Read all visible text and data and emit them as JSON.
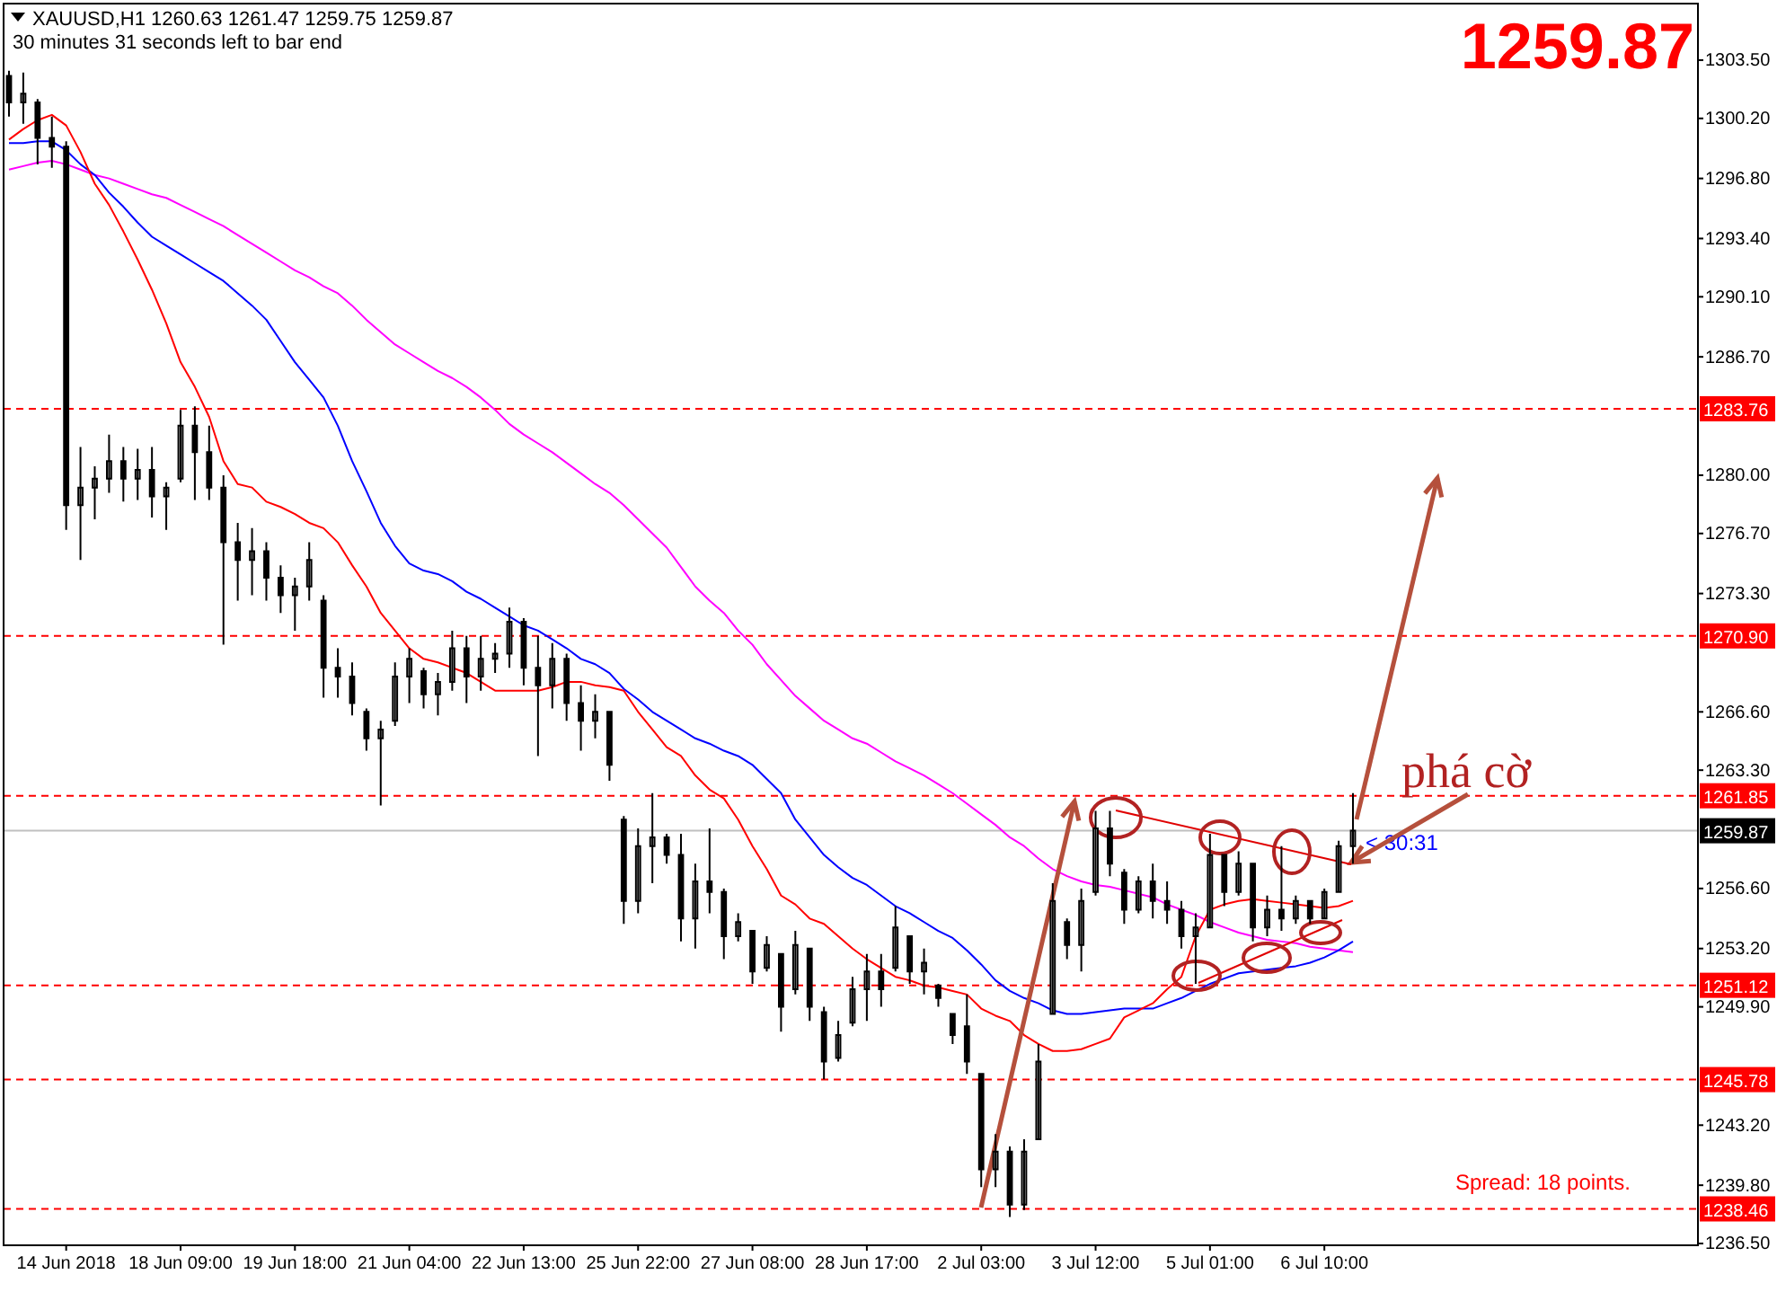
{
  "chart_data": {
    "type": "candlestick",
    "title": "XAUUSD,H1  1260.63 1261.47 1259.75 1259.87",
    "subtitle": "30 minutes 31 seconds left to bar end",
    "annotations": [
      "1259.87",
      "phá cờ",
      "< 30:31",
      "Spread: 18 points."
    ],
    "color": "#000000",
    "categories": [
      null,
      null,
      null,
      null,
      "14 Jun 2018",
      null,
      null,
      null,
      null,
      null,
      null,
      null,
      "18 Jun 09:00",
      null,
      null,
      null,
      null,
      null,
      null,
      null,
      "19 Jun 18:00",
      null,
      null,
      null,
      null,
      null,
      null,
      null,
      "21 Jun 04:00",
      null,
      null,
      null,
      null,
      null,
      null,
      null,
      "22 Jun 13:00",
      null,
      null,
      null,
      null,
      null,
      null,
      null,
      "25 Jun 22:00",
      null,
      null,
      null,
      null,
      null,
      null,
      null,
      "27 Jun 08:00",
      null,
      null,
      null,
      null,
      null,
      null,
      null,
      "28 Jun 17:00",
      null,
      null,
      null,
      null,
      null,
      null,
      null,
      "2 Jul 03:00",
      null,
      null,
      null,
      null,
      null,
      null,
      null,
      "3 Jul 12:00",
      null,
      null,
      null,
      null,
      null,
      null,
      null,
      "5 Jul 01:00",
      null,
      null,
      null,
      null,
      null,
      null,
      null,
      "6 Jul 10:00",
      null,
      null
    ],
    "ohlc": [
      [
        1302.6,
        1302.9,
        1300.3,
        1301.1
      ],
      [
        1301.1,
        1302.8,
        1299.9,
        1301.6
      ],
      [
        1301.1,
        1301.3,
        1297.6,
        1299.1
      ],
      [
        1299.1,
        1300.3,
        1297.4,
        1298.6
      ],
      [
        1298.6,
        1298.9,
        1276.9,
        1278.3
      ],
      [
        1278.3,
        1281.6,
        1275.2,
        1279.3
      ],
      [
        1279.3,
        1280.5,
        1277.5,
        1279.8
      ],
      [
        1279.8,
        1282.3,
        1279.0,
        1280.8
      ],
      [
        1280.8,
        1281.6,
        1278.5,
        1279.8
      ],
      [
        1279.8,
        1281.5,
        1278.6,
        1280.3
      ],
      [
        1280.3,
        1281.6,
        1277.6,
        1278.8
      ],
      [
        1278.8,
        1279.6,
        1276.9,
        1279.3
      ],
      [
        1279.8,
        1283.7,
        1279.6,
        1282.8
      ],
      [
        1282.8,
        1283.9,
        1278.6,
        1281.3
      ],
      [
        1281.3,
        1282.8,
        1278.6,
        1279.3
      ],
      [
        1279.3,
        1280.0,
        1270.4,
        1276.2
      ],
      [
        1276.2,
        1277.3,
        1272.9,
        1275.2
      ],
      [
        1275.2,
        1277.0,
        1273.2,
        1275.7
      ],
      [
        1275.7,
        1276.2,
        1272.9,
        1274.2
      ],
      [
        1274.2,
        1274.9,
        1272.2,
        1273.2
      ],
      [
        1273.2,
        1274.2,
        1271.2,
        1273.7
      ],
      [
        1273.7,
        1276.2,
        1272.9,
        1275.2
      ],
      [
        1272.9,
        1273.2,
        1267.4,
        1269.1
      ],
      [
        1269.1,
        1270.2,
        1267.4,
        1268.6
      ],
      [
        1268.6,
        1269.4,
        1266.4,
        1267.1
      ],
      [
        1266.6,
        1266.8,
        1264.4,
        1265.1
      ],
      [
        1265.1,
        1266.1,
        1261.3,
        1265.6
      ],
      [
        1266.1,
        1269.4,
        1265.8,
        1268.6
      ],
      [
        1268.6,
        1270.2,
        1267.1,
        1269.6
      ],
      [
        1268.9,
        1269.1,
        1266.8,
        1267.6
      ],
      [
        1267.6,
        1268.8,
        1266.4,
        1268.3
      ],
      [
        1268.3,
        1271.2,
        1267.8,
        1270.2
      ],
      [
        1270.2,
        1270.9,
        1267.1,
        1268.6
      ],
      [
        1268.6,
        1270.9,
        1267.8,
        1269.6
      ],
      [
        1269.6,
        1270.5,
        1268.8,
        1269.9
      ],
      [
        1269.9,
        1272.5,
        1269.1,
        1271.7
      ],
      [
        1271.7,
        1271.9,
        1268.1,
        1269.1
      ],
      [
        1269.1,
        1270.9,
        1264.1,
        1268.1
      ],
      [
        1268.1,
        1270.5,
        1266.8,
        1269.6
      ],
      [
        1269.6,
        1269.9,
        1266.1,
        1267.1
      ],
      [
        1267.1,
        1268.1,
        1264.4,
        1266.1
      ],
      [
        1266.1,
        1267.6,
        1265.1,
        1266.6
      ],
      [
        1266.6,
        1266.6,
        1262.7,
        1263.6
      ],
      [
        1260.5,
        1260.7,
        1254.6,
        1255.9
      ],
      [
        1255.9,
        1260.0,
        1255.2,
        1259.0
      ],
      [
        1259.0,
        1262.0,
        1256.9,
        1259.5
      ],
      [
        1259.5,
        1259.7,
        1258.0,
        1258.5
      ],
      [
        1258.5,
        1259.7,
        1253.6,
        1254.9
      ],
      [
        1254.9,
        1258.0,
        1253.2,
        1257.0
      ],
      [
        1257.0,
        1260.0,
        1255.2,
        1256.4
      ],
      [
        1256.4,
        1256.6,
        1252.6,
        1253.9
      ],
      [
        1253.9,
        1255.2,
        1253.6,
        1254.7
      ],
      [
        1254.2,
        1254.2,
        1251.2,
        1251.9
      ],
      [
        1252.1,
        1253.9,
        1251.9,
        1253.4
      ],
      [
        1252.9,
        1252.9,
        1248.5,
        1249.9
      ],
      [
        1250.9,
        1254.2,
        1250.6,
        1253.4
      ],
      [
        1253.2,
        1253.2,
        1249.1,
        1249.9
      ],
      [
        1249.6,
        1249.9,
        1245.8,
        1246.8
      ],
      [
        1247.0,
        1249.1,
        1246.8,
        1248.3
      ],
      [
        1249.0,
        1251.6,
        1248.8,
        1250.9
      ],
      [
        1250.9,
        1252.9,
        1249.1,
        1251.9
      ],
      [
        1251.9,
        1252.9,
        1249.9,
        1250.9
      ],
      [
        1252.1,
        1255.6,
        1251.9,
        1254.4
      ],
      [
        1253.9,
        1253.9,
        1251.2,
        1251.9
      ],
      [
        1251.9,
        1253.2,
        1250.6,
        1252.4
      ],
      [
        1251.1,
        1251.2,
        1249.9,
        1250.4
      ],
      [
        1249.5,
        1249.5,
        1247.8,
        1248.3
      ],
      [
        1248.8,
        1250.6,
        1246.1,
        1246.8
      ],
      [
        1246.1,
        1246.1,
        1239.7,
        1240.7
      ],
      [
        1240.7,
        1242.7,
        1239.7,
        1241.7
      ],
      [
        1241.7,
        1242.0,
        1238.0,
        1238.7
      ],
      [
        1238.7,
        1242.4,
        1238.4,
        1241.7
      ],
      [
        1242.4,
        1247.8,
        1242.4,
        1246.8
      ],
      [
        1249.5,
        1256.9,
        1249.5,
        1255.9
      ],
      [
        1254.7,
        1254.9,
        1252.6,
        1253.4
      ],
      [
        1253.4,
        1256.6,
        1251.9,
        1255.9
      ],
      [
        1256.4,
        1261.0,
        1256.2,
        1260.0
      ],
      [
        1260.0,
        1261.0,
        1257.3,
        1258.0
      ],
      [
        1257.5,
        1257.7,
        1254.6,
        1255.4
      ],
      [
        1255.4,
        1257.3,
        1255.2,
        1257.0
      ],
      [
        1257.0,
        1258.0,
        1254.9,
        1255.9
      ],
      [
        1255.9,
        1257.0,
        1254.6,
        1255.4
      ],
      [
        1255.4,
        1255.9,
        1253.2,
        1253.9
      ],
      [
        1253.9,
        1255.2,
        1251.2,
        1254.4
      ],
      [
        1254.4,
        1259.7,
        1254.4,
        1258.5
      ],
      [
        1258.5,
        1258.5,
        1255.6,
        1256.4
      ],
      [
        1256.4,
        1258.7,
        1256.2,
        1258.0
      ],
      [
        1258.0,
        1258.0,
        1253.6,
        1254.4
      ],
      [
        1254.4,
        1256.2,
        1253.9,
        1255.4
      ],
      [
        1255.4,
        1259.0,
        1254.2,
        1254.9
      ],
      [
        1254.9,
        1256.2,
        1254.6,
        1255.9
      ],
      [
        1255.9,
        1255.9,
        1254.6,
        1254.9
      ],
      [
        1254.9,
        1256.6,
        1254.9,
        1256.4
      ],
      [
        1256.4,
        1259.3,
        1256.4,
        1259.0
      ],
      [
        1259.0,
        1262.0,
        1258.0,
        1259.87
      ]
    ],
    "series": [
      {
        "type": "line",
        "color": "#ff00ff",
        "values": [
          1297.3,
          1297.5,
          1297.7,
          1297.8,
          1297.6,
          1297.3,
          1297.0,
          1296.8,
          1296.5,
          1296.2,
          1295.9,
          1295.7,
          1295.3,
          1294.9,
          1294.5,
          1294.1,
          1293.6,
          1293.1,
          1292.6,
          1292.1,
          1291.6,
          1291.2,
          1290.7,
          1290.3,
          1289.6,
          1288.8,
          1288.1,
          1287.4,
          1286.9,
          1286.4,
          1285.9,
          1285.5,
          1285.0,
          1284.4,
          1283.7,
          1282.9,
          1282.3,
          1281.8,
          1281.3,
          1280.7,
          1280.1,
          1279.5,
          1279.0,
          1278.3,
          1277.5,
          1276.7,
          1275.9,
          1274.8,
          1273.7,
          1272.9,
          1272.2,
          1271.2,
          1270.4,
          1269.3,
          1268.4,
          1267.5,
          1266.8,
          1266.1,
          1265.6,
          1265.1,
          1264.8,
          1264.3,
          1263.8,
          1263.4,
          1263.0,
          1262.5,
          1262.0,
          1261.4,
          1260.8,
          1260.2,
          1259.5,
          1259.0,
          1258.3,
          1257.7,
          1257.3,
          1257.0,
          1256.8,
          1256.7,
          1256.5,
          1256.3,
          1256.1,
          1255.7,
          1255.4,
          1255.1,
          1254.7,
          1254.4,
          1254.1,
          1253.9,
          1253.7,
          1253.6,
          1253.5,
          1253.3,
          1253.2,
          1253.1,
          1253.0
        ]
      },
      {
        "type": "line",
        "color": "#0000ff",
        "values": [
          1298.8,
          1298.8,
          1298.9,
          1298.9,
          1298.4,
          1297.6,
          1297.0,
          1296.0,
          1295.2,
          1294.3,
          1293.5,
          1293.0,
          1292.5,
          1292.0,
          1291.5,
          1291.0,
          1290.3,
          1289.6,
          1288.8,
          1287.6,
          1286.4,
          1285.4,
          1284.4,
          1282.8,
          1280.8,
          1279.1,
          1277.3,
          1276.0,
          1275.0,
          1274.6,
          1274.4,
          1274.0,
          1273.4,
          1273.0,
          1272.5,
          1272.0,
          1271.5,
          1271.2,
          1270.7,
          1270.2,
          1269.6,
          1269.3,
          1268.8,
          1267.9,
          1267.3,
          1266.6,
          1266.1,
          1265.6,
          1265.1,
          1264.8,
          1264.4,
          1264.1,
          1263.6,
          1262.8,
          1262.0,
          1260.5,
          1259.5,
          1258.5,
          1257.8,
          1257.2,
          1256.8,
          1256.2,
          1255.6,
          1255.2,
          1254.7,
          1254.2,
          1253.8,
          1253.1,
          1252.3,
          1251.4,
          1250.8,
          1250.4,
          1250.1,
          1249.7,
          1249.5,
          1249.5,
          1249.6,
          1249.7,
          1249.8,
          1249.8,
          1249.8,
          1250.1,
          1250.4,
          1250.8,
          1251.2,
          1251.5,
          1251.8,
          1251.9,
          1252.0,
          1252.1,
          1252.2,
          1252.4,
          1252.7,
          1253.1,
          1253.6
        ]
      },
      {
        "type": "line",
        "color": "#ff0000",
        "values": [
          1299.0,
          1299.6,
          1300.1,
          1300.4,
          1299.8,
          1298.3,
          1296.5,
          1295.3,
          1293.8,
          1292.2,
          1290.5,
          1288.6,
          1286.4,
          1285.0,
          1283.3,
          1280.8,
          1279.5,
          1279.3,
          1278.5,
          1278.2,
          1277.8,
          1277.3,
          1277.0,
          1276.2,
          1274.9,
          1273.7,
          1272.2,
          1271.2,
          1270.2,
          1269.6,
          1269.4,
          1269.1,
          1268.8,
          1268.3,
          1267.8,
          1267.8,
          1267.8,
          1267.8,
          1268.0,
          1268.3,
          1268.3,
          1268.1,
          1268.0,
          1267.8,
          1266.6,
          1265.6,
          1264.6,
          1264.1,
          1263.0,
          1262.2,
          1261.7,
          1260.5,
          1259.0,
          1257.7,
          1256.2,
          1255.7,
          1254.9,
          1254.6,
          1253.9,
          1253.2,
          1252.6,
          1252.1,
          1251.6,
          1251.4,
          1251.1,
          1251.0,
          1250.8,
          1250.6,
          1249.8,
          1249.4,
          1249.1,
          1248.3,
          1247.8,
          1247.4,
          1247.4,
          1247.5,
          1247.8,
          1248.1,
          1249.3,
          1249.7,
          1250.1,
          1250.9,
          1251.6,
          1253.9,
          1255.4,
          1255.7,
          1255.9,
          1256.0,
          1255.9,
          1255.8,
          1255.7,
          1255.6,
          1255.5,
          1255.6,
          1255.9
        ]
      }
    ],
    "ylim": [
      1236.4,
      1306.7
    ],
    "yticks": [
      {
        "value": 1303.5,
        "label": "1303.50"
      },
      {
        "value": 1300.2,
        "label": "1300.20"
      },
      {
        "value": 1296.8,
        "label": "1296.80"
      },
      {
        "value": 1293.4,
        "label": "1293.40"
      },
      {
        "value": 1290.1,
        "label": "1290.10"
      },
      {
        "value": 1286.7,
        "label": "1286.70"
      },
      {
        "value": 1280,
        "label": "1280.00"
      },
      {
        "value": 1276.7,
        "label": "1276.70"
      },
      {
        "value": 1273.3,
        "label": "1273.30"
      },
      {
        "value": 1266.6,
        "label": "1266.60"
      },
      {
        "value": 1263.3,
        "label": "1263.30"
      },
      {
        "value": 1256.6,
        "label": "1256.60"
      },
      {
        "value": 1253.2,
        "label": "1253.20"
      },
      {
        "value": 1249.9,
        "label": "1249.90"
      },
      {
        "value": 1243.2,
        "label": "1243.20"
      },
      {
        "value": 1239.8,
        "label": "1239.80"
      },
      {
        "value": 1236.5,
        "label": "1236.50"
      }
    ],
    "ref_lines": [
      {
        "axis": "y",
        "value": 1283.76,
        "label": "1283.76",
        "color": "#ff0000",
        "line_style": "dashed"
      },
      {
        "axis": "y",
        "value": 1270.9,
        "label": "1270.90",
        "color": "#ff0000",
        "line_style": "dashed"
      },
      {
        "axis": "y",
        "value": 1261.85,
        "label": "1261.85",
        "color": "#ff0000",
        "line_style": "dashed"
      },
      {
        "axis": "y",
        "value": 1251.12,
        "label": "1251.12",
        "color": "#ff0000",
        "line_style": "dashed"
      },
      {
        "axis": "y",
        "value": 1245.78,
        "label": "1245.78",
        "color": "#ff0000",
        "line_style": "dashed"
      },
      {
        "axis": "y",
        "value": 1238.46,
        "label": "1238.46",
        "color": "#ff0000",
        "line_style": "dashed"
      },
      {
        "axis": "y",
        "value": 1259.87,
        "label": "1259.87",
        "color": "#c0c0c0",
        "line_style": "solid"
      }
    ],
    "grid": false
  }
}
